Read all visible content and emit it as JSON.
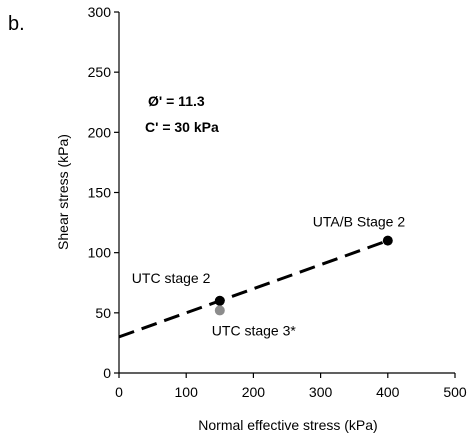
{
  "chart_data": {
    "type": "scatter",
    "panel_label": "b.",
    "xlabel": "Normal effective stress (kPa)",
    "ylabel": "Shear stress (kPa)",
    "xlim": [
      0,
      500
    ],
    "ylim": [
      0,
      300
    ],
    "x_ticks": [
      "0",
      "100",
      "200",
      "300",
      "400",
      "500"
    ],
    "y_ticks": [
      "0",
      "50",
      "100",
      "150",
      "200",
      "250",
      "300"
    ],
    "grid": false,
    "annotations": [
      "Ø' = 11.3",
      "C' = 30 kPa"
    ],
    "points": [
      {
        "label": "UTC stage 2",
        "x": 150,
        "y": 60,
        "color": "#000000"
      },
      {
        "label": "UTC stage 3*",
        "x": 150,
        "y": 52,
        "color": "#8c8c8c"
      },
      {
        "label": "UTA/B Stage 2",
        "x": 400,
        "y": 110,
        "color": "#000000"
      }
    ],
    "trendline": {
      "style": "dashed",
      "color": "#000000",
      "intercept": 30,
      "slope": 0.2,
      "x_range": [
        0,
        400
      ]
    }
  }
}
